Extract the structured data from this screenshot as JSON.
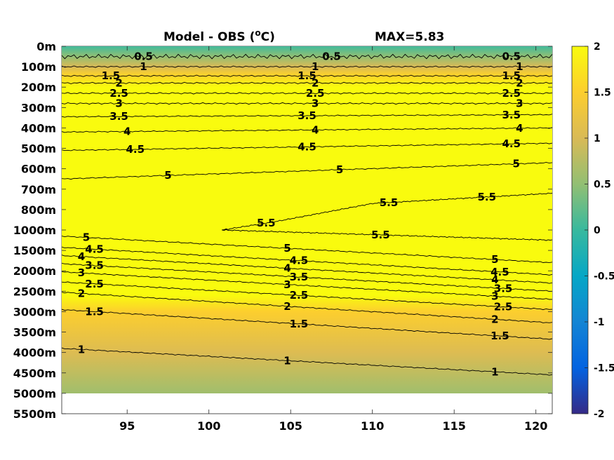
{
  "chart_data": {
    "type": "heatmap",
    "title": "Model - OBS (°C)",
    "title_unit_sup": "o",
    "title_main": "Model - OBS (",
    "title_end": "C)",
    "max_label": "MAX=5.83",
    "x_ticks": [
      95,
      100,
      105,
      110,
      115,
      120
    ],
    "x_range": [
      91,
      121
    ],
    "y_tick_labels": [
      "0m",
      "100m",
      "200m",
      "300m",
      "400m",
      "500m",
      "600m",
      "700m",
      "800m",
      "1000m",
      "1500m",
      "2000m",
      "2500m",
      "3000m",
      "3500m",
      "4000m",
      "4500m",
      "5000m",
      "5500m"
    ],
    "data_bottom_label": "5000m",
    "colorbar": {
      "range": [
        -2,
        2
      ],
      "ticks": [
        2,
        1.5,
        1,
        0.5,
        0,
        -0.5,
        -1,
        -1.5,
        -2
      ],
      "tick_labels": [
        "2",
        "1.5",
        "1",
        "0.5",
        "0",
        "-0.5",
        "-1",
        "-1.5",
        "-2"
      ],
      "colormap": "parula"
    },
    "contours": [
      {
        "level": 0.5,
        "label": "0.5",
        "points": [
          [
            91,
            0.5
          ],
          [
            121,
            0.5
          ]
        ],
        "labels_at": [
          96,
          107.5,
          118.5
        ]
      },
      {
        "level": 1,
        "label": "1",
        "points": [
          [
            91,
            1.0
          ],
          [
            121,
            1.0
          ]
        ],
        "labels_at": [
          96,
          106.5,
          119
        ]
      },
      {
        "level": 1.5,
        "label": "1.5",
        "points": [
          [
            91,
            1.45
          ],
          [
            121,
            1.45
          ]
        ],
        "labels_at": [
          94,
          106,
          118.5
        ]
      },
      {
        "level": 2,
        "label": "2",
        "points": [
          [
            91,
            1.8
          ],
          [
            121,
            1.8
          ]
        ],
        "labels_at": [
          94.5,
          106.5,
          119
        ]
      },
      {
        "level": 2.5,
        "label": "2.5",
        "points": [
          [
            91,
            2.3
          ],
          [
            121,
            2.3
          ]
        ],
        "labels_at": [
          94.5,
          106.5,
          118.5
        ]
      },
      {
        "level": 3,
        "label": "3",
        "points": [
          [
            91,
            2.8
          ],
          [
            121,
            2.8
          ]
        ],
        "labels_at": [
          94.5,
          106.5,
          119
        ]
      },
      {
        "level": 3.5,
        "label": "3.5",
        "points": [
          [
            91,
            3.45
          ],
          [
            121,
            3.35
          ]
        ],
        "labels_at": [
          94.5,
          106,
          118.5
        ]
      },
      {
        "level": 4,
        "label": "4",
        "points": [
          [
            91,
            4.2
          ],
          [
            121,
            4.0
          ]
        ],
        "labels_at": [
          95,
          106.5,
          119
        ]
      },
      {
        "level": 4.5,
        "label": "4.5",
        "points": [
          [
            91,
            5.1
          ],
          [
            121,
            4.75
          ]
        ],
        "labels_at": [
          95.5,
          106,
          118.5
        ]
      },
      {
        "level": 5,
        "label": "5",
        "points": [
          [
            91,
            6.5
          ],
          [
            121,
            5.7
          ]
        ],
        "labels_at": [
          97.5,
          108,
          118.8
        ]
      },
      {
        "level": 5.5,
        "label": "5.5",
        "points": [
          [
            100.8,
            9.0
          ],
          [
            104,
            8.6
          ],
          [
            110,
            7.7
          ],
          [
            121,
            7.2
          ]
        ],
        "labels_at": [
          103.5,
          111,
          117
        ]
      },
      {
        "level": 5.5,
        "label": "5.5",
        "points": [
          [
            100.8,
            9.0
          ],
          [
            121,
            9.5
          ]
        ],
        "labels_at": [
          110.5
        ]
      },
      {
        "level": 5,
        "label": "5",
        "points": [
          [
            91,
            9.3
          ],
          [
            121,
            10.6
          ]
        ],
        "labels_at": [
          92.5,
          104.8,
          117.5
        ]
      },
      {
        "level": 4.5,
        "label": "4.5",
        "points": [
          [
            91,
            9.85
          ],
          [
            121,
            11.2
          ]
        ],
        "labels_at": [
          93,
          105.5,
          117.8
        ]
      },
      {
        "level": 4,
        "label": "4",
        "points": [
          [
            91,
            10.25
          ],
          [
            121,
            11.6
          ]
        ],
        "labels_at": [
          92.2,
          104.8,
          117.5
        ]
      },
      {
        "level": 3.5,
        "label": "3.5",
        "points": [
          [
            91,
            10.65
          ],
          [
            121,
            12.0
          ]
        ],
        "labels_at": [
          93,
          105.5,
          118
        ]
      },
      {
        "level": 3,
        "label": "3",
        "points": [
          [
            91,
            11.05
          ],
          [
            121,
            12.4
          ]
        ],
        "labels_at": [
          92.2,
          104.8,
          117.5
        ]
      },
      {
        "level": 2.5,
        "label": "2.5",
        "points": [
          [
            91,
            11.55
          ],
          [
            121,
            12.9
          ]
        ],
        "labels_at": [
          93,
          105.5,
          118
        ]
      },
      {
        "level": 2,
        "label": "2",
        "points": [
          [
            91,
            12.05
          ],
          [
            121,
            13.55
          ]
        ],
        "labels_at": [
          92.2,
          104.8,
          117.5
        ]
      },
      {
        "level": 1.5,
        "label": "1.5",
        "points": [
          [
            91,
            12.9
          ],
          [
            121,
            14.35
          ]
        ],
        "labels_at": [
          93,
          105.5,
          117.8
        ]
      },
      {
        "level": 1,
        "label": "1",
        "points": [
          [
            91,
            14.8
          ],
          [
            121,
            16.1
          ]
        ],
        "labels_at": [
          92.2,
          104.8,
          117.5
        ]
      }
    ],
    "field_bands": [
      {
        "depth_index": 0.0,
        "value": 0.05
      },
      {
        "depth_index": 0.5,
        "value": 0.5
      },
      {
        "depth_index": 1.0,
        "value": 1.0
      },
      {
        "depth_index": 1.4,
        "value": 1.55
      },
      {
        "depth_index": 2.0,
        "value": 2.0
      },
      {
        "depth_index": 12.2,
        "value": 2.0
      },
      {
        "depth_index": 13.0,
        "value": 1.5
      },
      {
        "depth_index": 15.0,
        "value": 1.05
      },
      {
        "depth_index": 17.0,
        "value": 0.6
      }
    ]
  }
}
